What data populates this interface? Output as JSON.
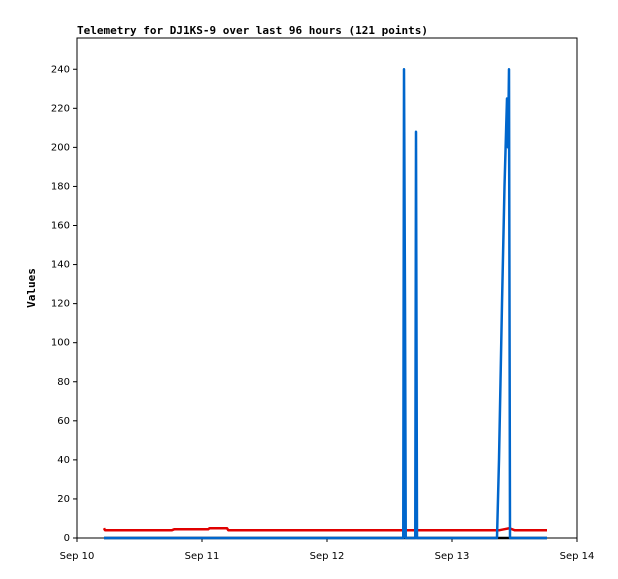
{
  "chart_data": {
    "type": "line",
    "title": "Telemetry for DJ1KS-9 over last 96 hours (121 points)",
    "y_label": "Values",
    "xlim": [
      0,
      4
    ],
    "xticks": [
      {
        "value": 0,
        "label": "Sep 10"
      },
      {
        "value": 1,
        "label": "Sep 11"
      },
      {
        "value": 2,
        "label": "Sep 12"
      },
      {
        "value": 3,
        "label": "Sep 13"
      },
      {
        "value": 4,
        "label": "Sep 14"
      }
    ],
    "ylim": [
      0,
      256
    ],
    "yticks": [
      0,
      20,
      40,
      60,
      80,
      100,
      120,
      140,
      160,
      180,
      200,
      220,
      240
    ],
    "grid": false,
    "series": [
      {
        "color": "#000000",
        "x": [
          0.216,
          3.76
        ],
        "values": [
          0,
          0
        ]
      },
      {
        "color": "#e00000",
        "x": [
          0.216,
          0.224,
          0.76,
          0.78,
          1.05,
          1.06,
          1.2,
          1.21,
          3.38,
          3.42,
          3.46,
          3.5,
          3.76
        ],
        "values": [
          5,
          4,
          4,
          4.5,
          4.5,
          5,
          5,
          4,
          4,
          4.5,
          5,
          4,
          4
        ]
      },
      {
        "color": "#0066cc",
        "x": [
          0.216,
          2.61,
          2.616,
          2.624,
          2.63,
          2.706,
          2.712,
          2.72,
          3.36,
          3.376,
          3.4,
          3.42,
          3.44,
          3.448,
          3.456,
          3.464,
          3.76
        ],
        "values": [
          0,
          0,
          240,
          120,
          0,
          0,
          208,
          0,
          0,
          40,
          120,
          180,
          225,
          200,
          240,
          0,
          0
        ]
      }
    ]
  }
}
